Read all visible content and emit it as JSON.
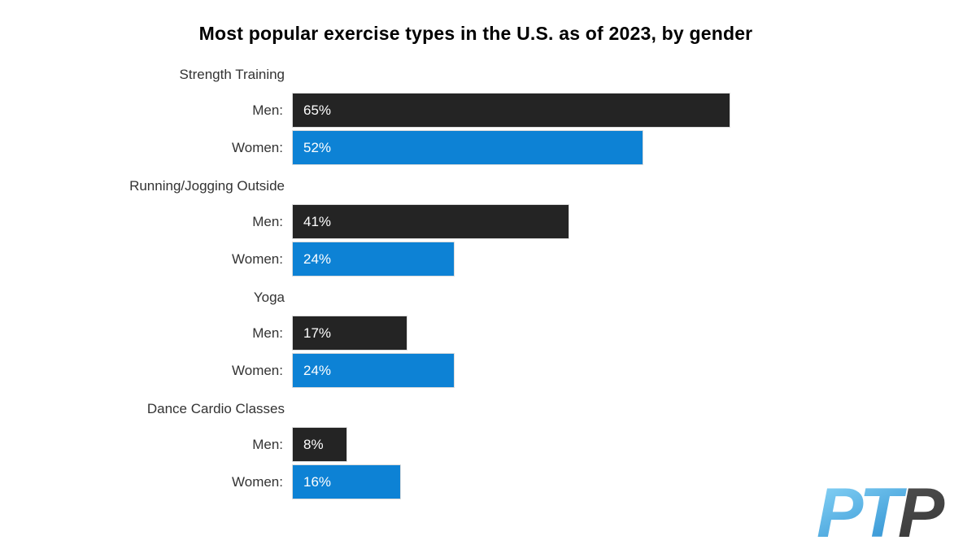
{
  "chart_data": {
    "type": "bar",
    "orientation": "horizontal",
    "title": "Most popular exercise types in the U.S. as of 2023, by gender",
    "categories": [
      "Strength Training",
      "Running/Jogging Outside",
      "Yoga",
      "Dance Cardio Classes"
    ],
    "series": [
      {
        "name": "Men",
        "label": "Men:",
        "color": "#242424",
        "values": [
          65,
          41,
          17,
          8
        ]
      },
      {
        "name": "Women",
        "label": "Women:",
        "color": "#0d82d5",
        "values": [
          52,
          24,
          24,
          16
        ]
      }
    ],
    "value_suffix": "%",
    "xlim": [
      0,
      65
    ],
    "grid": false,
    "legend_position": "none",
    "value_labels_inside_bars": true
  },
  "logo": {
    "text": "PTP",
    "segments": [
      {
        "text": "PT",
        "fill": "blue-gradient"
      },
      {
        "text": "P",
        "fill": "dark-gray"
      }
    ],
    "colors": {
      "blue_light": "#8fd9f9",
      "blue_dark": "#1e84cb",
      "gray_light": "#5a5a5a",
      "gray_dark": "#3a3a3a"
    }
  }
}
